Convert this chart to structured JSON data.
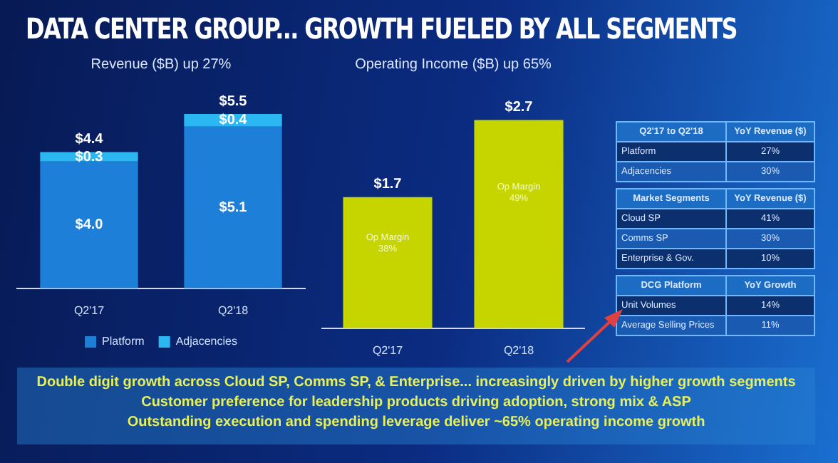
{
  "chart_data": [
    {
      "type": "bar",
      "title": "DATA CENTER GROUP... GROWTH FUELED BY ALL SEGMENTS",
      "subtitle": "Revenue ($B) up 27%",
      "categories": [
        "Q2'17",
        "Q2'18"
      ],
      "stacked": true,
      "legend": "bottom",
      "series": [
        {
          "name": "Platform",
          "color": "#1e7fd8",
          "values": [
            4.0,
            5.1
          ],
          "value_labels": [
            "$4.0",
            "$5.1"
          ]
        },
        {
          "name": "Adjacencies",
          "color": "#2bb8f2",
          "values": [
            0.3,
            0.4
          ],
          "value_labels": [
            "$0.3",
            "$0.4"
          ]
        }
      ],
      "totals": [
        "$4.4",
        "$5.5"
      ],
      "annotations": [
        "Double digit growth across Cloud SP, Comms SP, & Enterprise... increasingly driven by higher growth segments",
        "Customer preference for leadership products driving adoption, strong mix & ASP",
        "Outstanding execution and spending leverage deliver ~65% operating income growth"
      ]
    },
    {
      "type": "bar",
      "title": "Operating Income ($B) up 65%",
      "categories": [
        "Q2'17",
        "Q2'18"
      ],
      "values": [
        1.7,
        2.7
      ],
      "color": "#c6d500",
      "value_labels": [
        "$1.7",
        "$2.7"
      ],
      "annotations": [
        "Op Margin 38%",
        "Op Margin 49%"
      ]
    },
    {
      "type": "other",
      "annotations": [
        "Q2'17 to Q2'18",
        "YoY Revenue ($)",
        "Platform",
        "27%",
        "Adjacencies",
        "30%",
        "Market Segments",
        "YoY Revenue ($)",
        "Cloud SP",
        "41%",
        "Comms SP",
        "30%",
        "Enterprise & Gov.",
        "10%",
        "DCG Platform",
        "YoY Growth",
        "Unit Volumes",
        "14%",
        "Average Selling Prices",
        "11%"
      ]
    }
  ]
}
